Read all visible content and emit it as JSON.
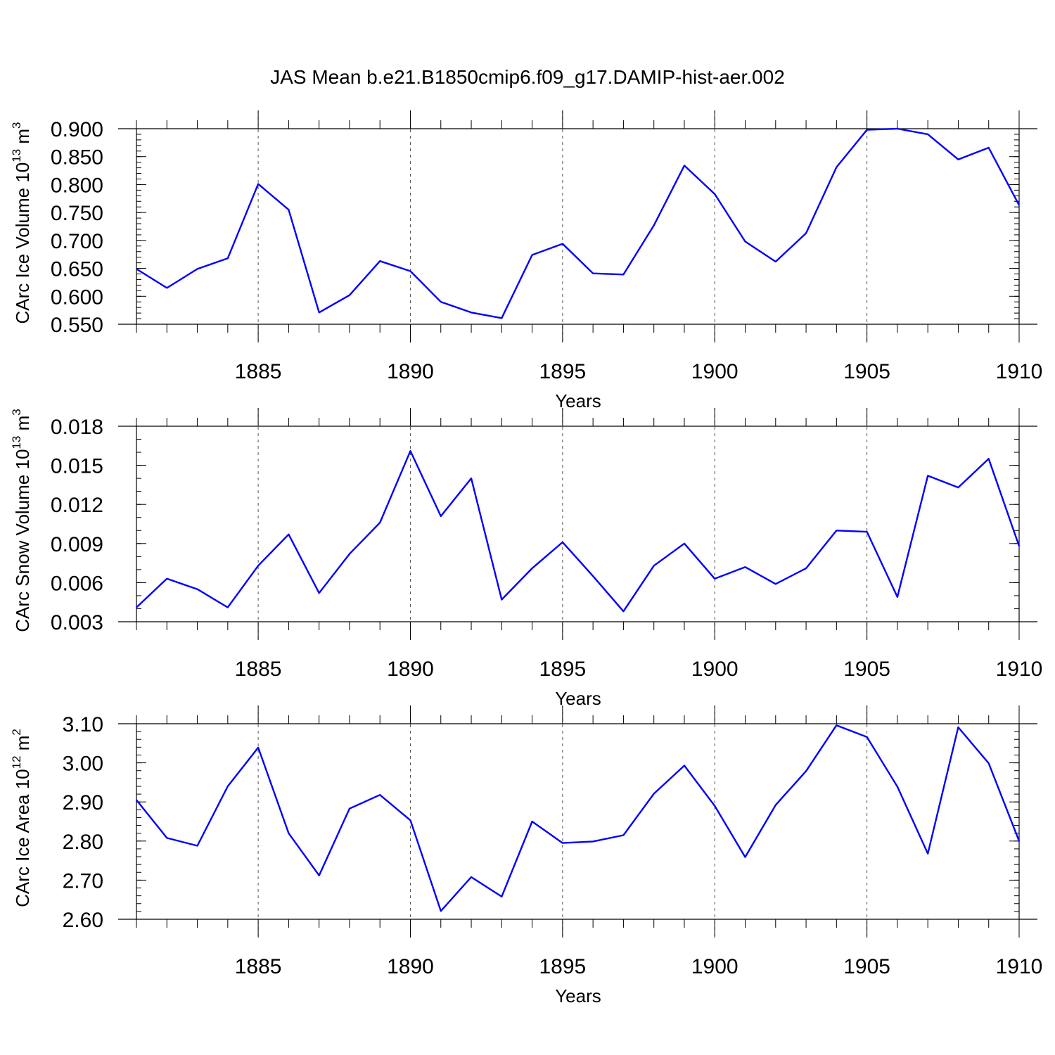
{
  "title": "JAS Mean b.e21.B1850cmip6.f09_g17.DAMIP-hist-aer.002",
  "colors": {
    "line": "#0000ff",
    "axis": "#000000",
    "grid": "#555555"
  },
  "chart_data": [
    {
      "type": "line",
      "ylabel": "CArc Ice Volume 10",
      "ylabel_sup": "13",
      "ylabel_unit": " m",
      "ylabel_unit_sup": "3",
      "xlabel": "Years",
      "xlim": [
        1881,
        1910
      ],
      "ylim": [
        0.55,
        0.9
      ],
      "yticks": [
        0.55,
        0.6,
        0.65,
        0.7,
        0.75,
        0.8,
        0.85,
        0.9
      ],
      "yticklabels": [
        "0.550",
        "0.600",
        "0.650",
        "0.700",
        "0.750",
        "0.800",
        "0.850",
        "0.900"
      ],
      "yminor_step": 0.01,
      "xticks": [
        1885,
        1890,
        1895,
        1900,
        1905,
        1910
      ],
      "xticklabels": [
        "1885",
        "1890",
        "1895",
        "1900",
        "1905",
        "1910"
      ],
      "grid": "vertical-dashed",
      "x": [
        1881,
        1882,
        1883,
        1884,
        1885,
        1886,
        1887,
        1888,
        1889,
        1890,
        1891,
        1892,
        1893,
        1894,
        1895,
        1896,
        1897,
        1898,
        1899,
        1900,
        1901,
        1902,
        1903,
        1904,
        1905,
        1906,
        1907,
        1908,
        1909,
        1910
      ],
      "y": [
        0.649,
        0.615,
        0.649,
        0.668,
        0.801,
        0.755,
        0.571,
        0.602,
        0.663,
        0.645,
        0.59,
        0.571,
        0.561,
        0.674,
        0.694,
        0.641,
        0.639,
        0.727,
        0.834,
        0.783,
        0.698,
        0.662,
        0.713,
        0.831,
        0.898,
        0.9,
        0.89,
        0.845,
        0.866,
        0.763
      ]
    },
    {
      "type": "line",
      "ylabel": "CArc Snow Volume 10",
      "ylabel_sup": "13",
      "ylabel_unit": " m",
      "ylabel_unit_sup": "3",
      "xlabel": "Years",
      "xlim": [
        1881,
        1910
      ],
      "ylim": [
        0.003,
        0.018
      ],
      "yticks": [
        0.003,
        0.006,
        0.009,
        0.012,
        0.015,
        0.018
      ],
      "yticklabels": [
        "0.003",
        "0.006",
        "0.009",
        "0.012",
        "0.015",
        "0.018"
      ],
      "yminor_step": 0.001,
      "xticks": [
        1885,
        1890,
        1895,
        1900,
        1905,
        1910
      ],
      "xticklabels": [
        "1885",
        "1890",
        "1895",
        "1900",
        "1905",
        "1910"
      ],
      "grid": "vertical-dashed",
      "x": [
        1881,
        1882,
        1883,
        1884,
        1885,
        1886,
        1887,
        1888,
        1889,
        1890,
        1891,
        1892,
        1893,
        1894,
        1895,
        1896,
        1897,
        1898,
        1899,
        1900,
        1901,
        1902,
        1903,
        1904,
        1905,
        1906,
        1907,
        1908,
        1909,
        1910
      ],
      "y": [
        0.0041,
        0.0063,
        0.0055,
        0.0041,
        0.0073,
        0.0097,
        0.0052,
        0.0082,
        0.0106,
        0.0161,
        0.0111,
        0.014,
        0.0047,
        0.0071,
        0.0091,
        0.0065,
        0.0038,
        0.0073,
        0.009,
        0.0063,
        0.0072,
        0.0059,
        0.0071,
        0.01,
        0.0099,
        0.0049,
        0.0142,
        0.0133,
        0.0155,
        0.0088
      ]
    },
    {
      "type": "line",
      "ylabel": "CArc Ice Area 10",
      "ylabel_sup": "12",
      "ylabel_unit": " m",
      "ylabel_unit_sup": "2",
      "xlabel": "Years",
      "xlim": [
        1881,
        1910
      ],
      "ylim": [
        2.6,
        3.1
      ],
      "yticks": [
        2.6,
        2.7,
        2.8,
        2.9,
        3.0,
        3.1
      ],
      "yticklabels": [
        "2.60",
        "2.70",
        "2.80",
        "2.90",
        "3.00",
        "3.10"
      ],
      "yminor_step": 0.02,
      "xticks": [
        1885,
        1890,
        1895,
        1900,
        1905,
        1910
      ],
      "xticklabels": [
        "1885",
        "1890",
        "1895",
        "1900",
        "1905",
        "1910"
      ],
      "grid": "vertical-dashed",
      "x": [
        1881,
        1882,
        1883,
        1884,
        1885,
        1886,
        1887,
        1888,
        1889,
        1890,
        1891,
        1892,
        1893,
        1894,
        1895,
        1896,
        1897,
        1898,
        1899,
        1900,
        1901,
        1902,
        1903,
        1904,
        1905,
        1906,
        1907,
        1908,
        1909,
        1910
      ],
      "y": [
        2.905,
        2.808,
        2.788,
        2.94,
        3.039,
        2.82,
        2.712,
        2.883,
        2.918,
        2.853,
        2.621,
        2.708,
        2.658,
        2.85,
        2.795,
        2.799,
        2.815,
        2.921,
        2.993,
        2.89,
        2.759,
        2.892,
        2.979,
        3.096,
        3.066,
        2.939,
        2.768,
        3.091,
        2.999,
        2.8
      ]
    }
  ]
}
